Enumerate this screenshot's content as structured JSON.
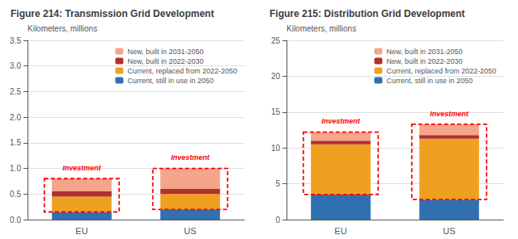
{
  "chart_data": [
    {
      "type": "bar",
      "title": "Figure 214: Transmission Grid Development",
      "ylabel": "Kilometers, millions",
      "categories": [
        "EU",
        "US"
      ],
      "stacked": true,
      "series": [
        {
          "name": "Current, still in use in 2050",
          "color": "#3070B0",
          "values": [
            0.15,
            0.2
          ]
        },
        {
          "name": "Current, replaced from 2022-2050",
          "color": "#F0A020",
          "values": [
            0.3,
            0.3
          ]
        },
        {
          "name": "New, built in 2022-2030",
          "color": "#B03030",
          "values": [
            0.1,
            0.1
          ]
        },
        {
          "name": "New, built in 2031-2050",
          "color": "#F4A58A",
          "values": [
            0.25,
            0.4
          ]
        }
      ],
      "annotations": [
        {
          "text": "Investment",
          "x": "EU",
          "color": "#FF0000"
        },
        {
          "text": "Investment",
          "x": "US",
          "color": "#FF0000"
        }
      ],
      "ylim": [
        0,
        3.5
      ],
      "yticks": [
        {
          "value": 0,
          "label": "0.0"
        },
        0.5,
        {
          "value": 1,
          "label": "1.0"
        },
        1.5,
        {
          "value": 2,
          "label": "2.0"
        },
        2.5,
        {
          "value": 3,
          "label": "3.0"
        },
        3.5
      ],
      "grid": true,
      "legend": "upper right"
    },
    {
      "type": "bar",
      "title": "Figure 215: Distribution Grid Development",
      "ylabel": "Kilometers, millions",
      "categories": [
        "EU",
        "US"
      ],
      "stacked": true,
      "series": [
        {
          "name": "Current, still in use in 2050",
          "color": "#3070B0",
          "values": [
            3.5,
            2.8
          ]
        },
        {
          "name": "Current, replaced from 2022-2050",
          "color": "#F0A020",
          "values": [
            7.0,
            8.5
          ]
        },
        {
          "name": "New, built in 2022-2030",
          "color": "#B03030",
          "values": [
            0.5,
            0.5
          ]
        },
        {
          "name": "New, built in 2031-2050",
          "color": "#F4A58A",
          "values": [
            1.2,
            1.5
          ]
        }
      ],
      "annotations": [
        {
          "text": "Investment",
          "x": "EU",
          "color": "#FF0000"
        },
        {
          "text": "Investment",
          "x": "US",
          "color": "#FF0000"
        }
      ],
      "ylim": [
        0,
        25
      ],
      "yticks": [
        0,
        5,
        10,
        15,
        20,
        25
      ],
      "grid": true,
      "legend": "upper right"
    }
  ]
}
